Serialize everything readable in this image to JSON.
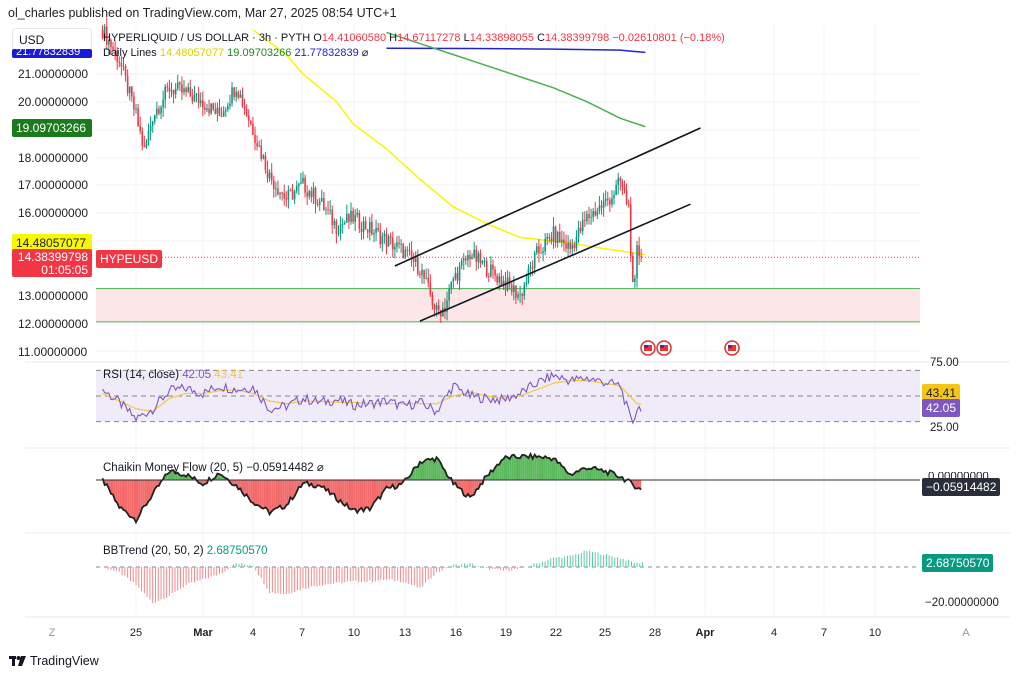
{
  "header": {
    "published": "ol_charles published on TradingView.com, Mar 27, 2025 08:54 UTC+1",
    "currency": "USD"
  },
  "legend": {
    "symbol": "HYPERLIQUID / US DOLLAR · 3h · PYTH",
    "o_label": "O",
    "o": "14.41060580",
    "h_label": "H",
    "h": "14.67117278",
    "l_label": "L",
    "l": "14.33898055",
    "c_label": "C",
    "c": "14.38399798",
    "change": "−0.02610801 (−0.18%)",
    "daily_lines_label": "Daily Lines",
    "dl1": "14.48057077",
    "dl2": "19.09703266",
    "dl3": "21.77832839",
    "hide": "⌀"
  },
  "price_axis": {
    "ticks": [
      "21.00000000",
      "20.00000000",
      "18.00000000",
      "17.00000000",
      "16.00000000",
      "13.00000000",
      "12.00000000",
      "11.00000000"
    ],
    "tag_blue": "21.77832839",
    "tag_green": "19.09703266",
    "tag_yellow": "14.48057077",
    "tag_price": "14.38399798",
    "tag_timer": "01:05:05",
    "symbol_tag": "HYPEUSD"
  },
  "rsi": {
    "label": "RSI (14, close)",
    "value": "42.05",
    "ma": "43.41",
    "axis_top": "75.00",
    "axis_bot": "25.00"
  },
  "cmf": {
    "label": "Chaikin Money Flow (20, 5)",
    "value": "−0.05914482",
    "hide": "⌀",
    "axis_zero": "0.00000000"
  },
  "bbtrend": {
    "label": "BBTrend (20, 50, 2)",
    "value": "2.68750570",
    "axis_bot": "−20.00000000"
  },
  "time_axis": {
    "ticks": [
      "25",
      "Mar",
      "4",
      "7",
      "10",
      "13",
      "16",
      "19",
      "22",
      "25",
      "28",
      "Apr",
      "4",
      "7",
      "10"
    ],
    "left_btn": "Z",
    "right_btn": "A"
  },
  "footer": {
    "brand": "TradingView"
  },
  "colors": {
    "up": "#089981",
    "down": "#f23645",
    "yellow": "#f7f700",
    "green": "#1b8a1b",
    "blue": "#2222cc",
    "rsi": "#7e57c2",
    "rsima": "#f5c842",
    "cmf_pos": "#5cb85c",
    "cmf_neg": "#f26a6a"
  },
  "chart_data": {
    "type": "candlestick",
    "title": "HYPERLIQUID / US DOLLAR · 3h · PYTH",
    "x_unit": "days since Feb 25 2025",
    "x_ticks": [
      0,
      4,
      7,
      10,
      13,
      16,
      19,
      22,
      25,
      28,
      31,
      35,
      38,
      41,
      44
    ],
    "ylim": [
      10.6,
      23
    ],
    "closes": {
      "x": [
        -2,
        -1,
        0,
        0.5,
        1,
        2,
        3,
        4,
        5,
        6,
        7,
        8,
        9,
        10,
        11,
        12,
        13,
        14,
        15,
        16,
        17,
        17.5,
        18,
        18.5,
        19,
        20,
        21,
        22,
        23,
        24,
        25,
        26,
        27,
        28,
        28.5,
        29,
        29.5,
        29.8,
        30,
        30.3
      ],
      "y": [
        22.6,
        21.5,
        19.5,
        18.2,
        19.5,
        20.5,
        20.3,
        20,
        19.5,
        20.6,
        19,
        17.3,
        16.5,
        17,
        16.4,
        15.5,
        15.8,
        15.4,
        15,
        14.6,
        14,
        13.2,
        12.4,
        12.6,
        13.6,
        14.5,
        14,
        13.5,
        13,
        14.5,
        15.2,
        14.7,
        15.8,
        16.3,
        16.6,
        17.1,
        16.2,
        12.6,
        14.6,
        14.38
      ]
    },
    "daily_line_yellow": {
      "x": [
        7,
        9,
        10,
        12,
        13,
        15,
        17,
        19,
        21,
        23,
        26,
        28,
        30.5
      ],
      "y": [
        22.6,
        21.7,
        21,
        20,
        19.2,
        18.3,
        17.2,
        16.2,
        15.6,
        15.1,
        14.9,
        14.7,
        14.48
      ]
    },
    "daily_line_green": {
      "x": [
        15,
        17,
        19,
        21,
        23,
        25,
        27,
        29,
        30.5
      ],
      "y": [
        22.5,
        22.1,
        21.7,
        21.3,
        20.9,
        20.5,
        20.0,
        19.4,
        19.1
      ]
    },
    "daily_line_blue": {
      "x": [
        15,
        20,
        25,
        29,
        30.5
      ],
      "y": [
        21.93,
        21.92,
        21.9,
        21.86,
        21.78
      ]
    },
    "channel_upper": {
      "x": [
        15.5,
        33.8
      ],
      "y": [
        14.07,
        19.05
      ]
    },
    "channel_lower": {
      "x": [
        17,
        33.2
      ],
      "y": [
        12.08,
        16.3
      ]
    },
    "support_zone": [
      12.05,
      13.25
    ],
    "last_price": 14.38399798,
    "rsi": {
      "ylim": [
        20,
        80
      ],
      "bands": [
        70,
        50,
        30
      ],
      "x": [
        -2,
        -1,
        0,
        1,
        2,
        3,
        4,
        5,
        6,
        7,
        8,
        9,
        10,
        11,
        12,
        13,
        14,
        15,
        16,
        17,
        18,
        19,
        20,
        21,
        22,
        23,
        24,
        25,
        26,
        27,
        28,
        29,
        29.7,
        30,
        30.3
      ],
      "y": [
        55,
        45,
        32,
        40,
        54,
        56,
        52,
        58,
        55,
        57,
        40,
        42,
        48,
        45,
        47,
        43,
        44,
        46,
        42,
        45,
        38,
        58,
        50,
        48,
        47,
        52,
        60,
        66,
        62,
        64,
        61,
        58,
        28,
        40,
        42
      ],
      "ma": [
        52,
        46,
        40,
        38,
        48,
        52,
        52,
        54,
        55,
        52,
        46,
        44,
        46,
        46,
        45,
        45,
        44,
        44,
        44,
        44,
        44,
        50,
        53,
        50,
        48,
        50,
        55,
        60,
        62,
        62,
        60,
        58,
        48,
        44,
        43.4
      ]
    },
    "cmf": {
      "ylim": [
        -0.3,
        0.2
      ],
      "x": [
        -2,
        -1,
        0,
        1,
        2,
        3,
        4,
        5,
        6,
        7,
        8,
        9,
        10,
        11,
        12,
        13,
        14,
        15,
        16,
        17,
        18,
        19,
        20,
        21,
        22,
        23,
        24,
        25,
        26,
        27,
        28,
        29,
        30,
        30.3
      ],
      "y": [
        0,
        -0.15,
        -0.22,
        -0.08,
        0.05,
        0.03,
        -0.02,
        0.04,
        -0.03,
        -0.12,
        -0.18,
        -0.14,
        -0.02,
        -0.03,
        -0.1,
        -0.17,
        -0.16,
        -0.05,
        -0.02,
        0.1,
        0.12,
        -0.02,
        -0.1,
        0.02,
        0.12,
        0.13,
        0.13,
        0.12,
        0.03,
        0.07,
        0.05,
        0.02,
        -0.04,
        -0.06
      ]
    },
    "bbtrend": {
      "ylim": [
        -25,
        10
      ],
      "x": [
        -2,
        -1,
        0,
        1,
        2,
        3,
        4,
        5,
        6,
        7,
        8,
        9,
        10,
        11,
        12,
        13,
        14,
        15,
        16,
        17,
        18,
        19,
        20,
        21,
        22,
        23,
        24,
        25,
        26,
        27,
        28,
        29,
        30,
        30.3
      ],
      "y": [
        0,
        -3,
        -10,
        -20,
        -16,
        -10,
        -7,
        -4,
        2,
        1,
        -14,
        -15,
        -12,
        -10,
        -9,
        -8,
        -8,
        -7,
        -8,
        -12,
        -3,
        1,
        2,
        -1,
        -2,
        -1,
        2,
        5,
        6,
        9,
        7,
        5,
        2,
        2.69
      ]
    }
  }
}
